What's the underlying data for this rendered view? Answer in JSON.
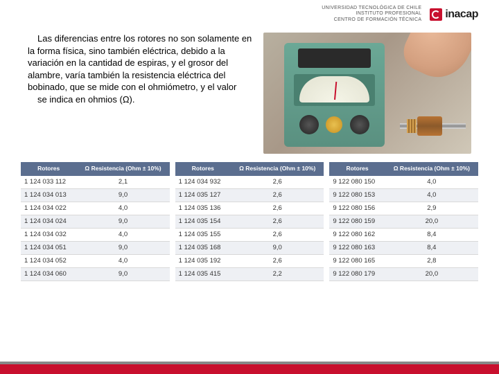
{
  "header": {
    "lines": [
      "UNIVERSIDAD TECNOLÓGICA DE CHILE",
      "INSTITUTO PROFESIONAL",
      "CENTRO DE FORMACIÓN TÉCNICA"
    ],
    "logo_text": "inacap",
    "logo_color": "#c8102e"
  },
  "body_text": {
    "p1": "Las diferencias entre los rotores no son solamente en la forma física, sino también eléctrica, debido a la variación en la cantidad de espiras, y el grosor del alambre, varía también la resistencia eléctrica del bobinado, que se mide con el ohmiómetro, y el valor",
    "p2": "se indica en ohmios (Ω)."
  },
  "table_headers": {
    "col1": "Rotores",
    "col2": "Ω Resistencia (Ohm ± 10%)"
  },
  "tables": [
    {
      "rows": [
        [
          "1 124 033 112",
          "2,1"
        ],
        [
          "1 124 034 013",
          "9,0"
        ],
        [
          "1 124 034 022",
          "4,0"
        ],
        [
          "1 124 034 024",
          "9,0"
        ],
        [
          "1 124 034 032",
          "4,0"
        ],
        [
          "1 124 034 051",
          "9,0"
        ],
        [
          "1 124 034 052",
          "4,0"
        ],
        [
          "1 124 034 060",
          "9,0"
        ]
      ]
    },
    {
      "rows": [
        [
          "1 124 034 932",
          "2,6"
        ],
        [
          "1 124 035 127",
          "2,6"
        ],
        [
          "1 124 035 136",
          "2,6"
        ],
        [
          "1 124 035 154",
          "2,6"
        ],
        [
          "1 124 035 155",
          "2,6"
        ],
        [
          "1 124 035 168",
          "9,0"
        ],
        [
          "1 124 035 192",
          "2,6"
        ],
        [
          "1 124 035 415",
          "2,2"
        ]
      ]
    },
    {
      "rows": [
        [
          "9 122 080 150",
          "4,0"
        ],
        [
          "9 122 080 153",
          "4,0"
        ],
        [
          "9 122 080 156",
          "2,9"
        ],
        [
          "9 122 080 159",
          "20,0"
        ],
        [
          "9 122 080 162",
          "8,4"
        ],
        [
          "9 122 080 163",
          "8,4"
        ],
        [
          "9 122 080 165",
          "2,8"
        ],
        [
          "9 122 080 179",
          "20,0"
        ]
      ]
    }
  ],
  "colors": {
    "header_bg": "#5b6e8f",
    "row_alt": "#eef0f4",
    "accent": "#c8102e",
    "device": "#5a9080"
  }
}
